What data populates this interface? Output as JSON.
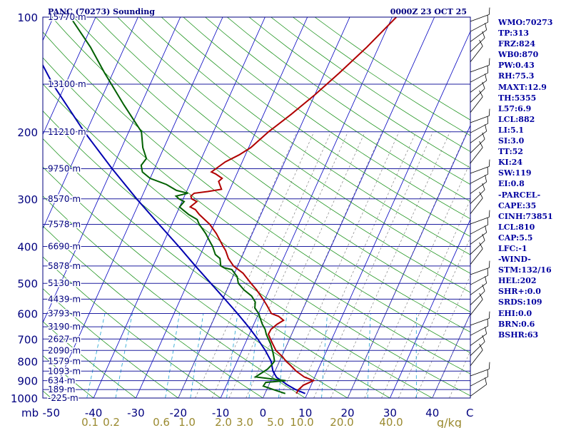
{
  "header": {
    "station": "PANC (70273) Sounding",
    "datetime": "0000Z 23 OCT 25"
  },
  "colors": {
    "frame": "#00007f",
    "isobar": "#1e1e9f",
    "isotherm": "#0000c0",
    "dry_adiabat": "#0a8a0a",
    "moist_adiabat": "#707070",
    "mixing_ratio": "#1aa0d0",
    "temperature": "#b00000",
    "dewpoint": "#006000",
    "parcel": "#0000b0",
    "index_text": "#0000a0",
    "mixing_label": "#9a8a30",
    "wind_barb": "#000000"
  },
  "indices": [
    "WMO:70273",
    "TP:313",
    "FRZ:824",
    "WB0:870",
    "PW:0.43",
    "RH:75.3",
    "MAXT:12.9",
    "TH:5355",
    "L57:6.9",
    "LCL:882",
    "LI:5.1",
    "SI:3.0",
    "TT:52",
    "KI:24",
    "SW:119",
    "EI:0.8",
    "-PARCEL-",
    "CAPE:35",
    "CINH:73851",
    "LCL:810",
    "CAP:5.5",
    "LFC:-1",
    "-WIND-",
    "STM:132/16",
    "HEL:202",
    "SHR+:0.0",
    "SRDS:109",
    "EHI:0.0",
    "BRN:0.6",
    "BSHR:63"
  ],
  "chart_data": {
    "type": "skew-t",
    "title": "PANC (70273) Sounding",
    "xlabel": "C",
    "mixing_ratio_unit": "g/kg",
    "pressure_unit": "mb",
    "xlim": [
      -50,
      50
    ],
    "ylim": [
      1000,
      100
    ],
    "pressure_ticks": [
      100,
      200,
      300,
      400,
      500,
      600,
      700,
      800,
      900,
      1000
    ],
    "temperature_ticks": [
      -50,
      -40,
      -30,
      -20,
      -10,
      0,
      10,
      20,
      30,
      40
    ],
    "mixing_ratio_labels": [
      "0.1",
      "0.2",
      "0.6",
      "1.0",
      "2.0",
      "3.0",
      "5.0",
      "10.0",
      "20.0",
      "40.0"
    ],
    "mixing_ratio_values": [
      0.1,
      0.2,
      0.6,
      1.0,
      2.0,
      3.0,
      5.0,
      10.0,
      20.0,
      40.0
    ],
    "height_levels": [
      {
        "p": 100,
        "label": "15770 m"
      },
      {
        "p": 150,
        "label": "13100 m"
      },
      {
        "p": 200,
        "label": "11210 m"
      },
      {
        "p": 250,
        "label": "9750 m"
      },
      {
        "p": 300,
        "label": "8570 m"
      },
      {
        "p": 350,
        "label": "7578 m"
      },
      {
        "p": 400,
        "label": "6690 m"
      },
      {
        "p": 450,
        "label": "5878 m"
      },
      {
        "p": 500,
        "label": "5130 m"
      },
      {
        "p": 550,
        "label": "4439 m"
      },
      {
        "p": 600,
        "label": "3793 m"
      },
      {
        "p": 650,
        "label": "3190 m"
      },
      {
        "p": 700,
        "label": "2627 m"
      },
      {
        "p": 750,
        "label": "2090 m"
      },
      {
        "p": 800,
        "label": "1579 m"
      },
      {
        "p": 850,
        "label": "1093 m"
      },
      {
        "p": 900,
        "label": "634 m"
      },
      {
        "p": 950,
        "label": "189 m"
      },
      {
        "p": 1000,
        "label": "-225 m"
      }
    ],
    "temperature_profile": [
      [
        973,
        7.4
      ],
      [
        950,
        7.5
      ],
      [
        925,
        8.2
      ],
      [
        900,
        10.1
      ],
      [
        880,
        7.5
      ],
      [
        850,
        5.0
      ],
      [
        820,
        3.0
      ],
      [
        800,
        1.5
      ],
      [
        780,
        0.3
      ],
      [
        750,
        -2.0
      ],
      [
        720,
        -3.5
      ],
      [
        700,
        -4.5
      ],
      [
        680,
        -5.5
      ],
      [
        660,
        -5.4
      ],
      [
        640,
        -4.5
      ],
      [
        625,
        -3.4
      ],
      [
        610,
        -5.0
      ],
      [
        600,
        -7.0
      ],
      [
        570,
        -9.0
      ],
      [
        550,
        -10.5
      ],
      [
        520,
        -13.0
      ],
      [
        500,
        -15.0
      ],
      [
        470,
        -18.0
      ],
      [
        450,
        -21.0
      ],
      [
        430,
        -23.0
      ],
      [
        410,
        -24.5
      ],
      [
        400,
        -25.5
      ],
      [
        370,
        -28.5
      ],
      [
        350,
        -31.0
      ],
      [
        330,
        -34.5
      ],
      [
        320,
        -36.0
      ],
      [
        315,
        -37.5
      ],
      [
        305,
        -36.5
      ],
      [
        300,
        -38.0
      ],
      [
        295,
        -38.5
      ],
      [
        290,
        -38.0
      ],
      [
        287,
        -35.0
      ],
      [
        283,
        -32.0
      ],
      [
        270,
        -33.5
      ],
      [
        265,
        -33.0
      ],
      [
        258,
        -35.0
      ],
      [
        255,
        -36.2
      ],
      [
        250,
        -35.5
      ],
      [
        240,
        -34.0
      ],
      [
        230,
        -31.5
      ],
      [
        220,
        -29.5
      ],
      [
        200,
        -27.0
      ],
      [
        180,
        -23.5
      ],
      [
        160,
        -20.0
      ],
      [
        140,
        -16.5
      ],
      [
        120,
        -12.8
      ],
      [
        100,
        -9.0
      ]
    ],
    "dewpoint_profile": [
      [
        973,
        4.8
      ],
      [
        950,
        1.5
      ],
      [
        930,
        -1.2
      ],
      [
        910,
        -1.0
      ],
      [
        900,
        3.5
      ],
      [
        880,
        -4.0
      ],
      [
        860,
        -3.0
      ],
      [
        840,
        -2.0
      ],
      [
        820,
        -1.5
      ],
      [
        800,
        -1.2
      ],
      [
        780,
        -1.8
      ],
      [
        750,
        -2.8
      ],
      [
        720,
        -4.0
      ],
      [
        700,
        -5.0
      ],
      [
        680,
        -6.0
      ],
      [
        660,
        -6.8
      ],
      [
        640,
        -8.0
      ],
      [
        620,
        -9.0
      ],
      [
        600,
        -10.0
      ],
      [
        580,
        -11.5
      ],
      [
        560,
        -12.0
      ],
      [
        540,
        -13.5
      ],
      [
        520,
        -16.0
      ],
      [
        500,
        -18.0
      ],
      [
        480,
        -19.0
      ],
      [
        460,
        -21.0
      ],
      [
        455,
        -23.0
      ],
      [
        450,
        -24.0
      ],
      [
        430,
        -25.0
      ],
      [
        420,
        -26.5
      ],
      [
        400,
        -28.0
      ],
      [
        390,
        -29.0
      ],
      [
        370,
        -31.0
      ],
      [
        350,
        -33.5
      ],
      [
        340,
        -34.5
      ],
      [
        330,
        -37.0
      ],
      [
        320,
        -39.0
      ],
      [
        315,
        -40.0
      ],
      [
        305,
        -39.5
      ],
      [
        300,
        -41.0
      ],
      [
        295,
        -42.0
      ],
      [
        290,
        -39.5
      ],
      [
        285,
        -42.5
      ],
      [
        275,
        -45.5
      ],
      [
        265,
        -50.0
      ],
      [
        255,
        -52.5
      ],
      [
        245,
        -53.5
      ],
      [
        235,
        -53.0
      ],
      [
        220,
        -55.0
      ],
      [
        200,
        -57.0
      ],
      [
        170,
        -64.0
      ],
      [
        140,
        -72.0
      ],
      [
        120,
        -78.0
      ],
      [
        100,
        -86.0
      ]
    ],
    "parcel_profile": [
      [
        973,
        9.5
      ],
      [
        950,
        6.8
      ],
      [
        925,
        4.5
      ],
      [
        900,
        2.5
      ],
      [
        882,
        1.0
      ],
      [
        850,
        -0.5
      ],
      [
        800,
        -2.0
      ],
      [
        750,
        -4.5
      ],
      [
        700,
        -7.5
      ],
      [
        650,
        -11.0
      ],
      [
        600,
        -15.0
      ],
      [
        550,
        -19.5
      ],
      [
        500,
        -24.5
      ],
      [
        450,
        -30.0
      ],
      [
        400,
        -36.0
      ],
      [
        350,
        -43.0
      ],
      [
        300,
        -51.0
      ],
      [
        250,
        -60.0
      ],
      [
        200,
        -70.5
      ],
      [
        150,
        -83.0
      ],
      [
        120,
        -91.5
      ],
      [
        100,
        -97.5
      ]
    ]
  }
}
